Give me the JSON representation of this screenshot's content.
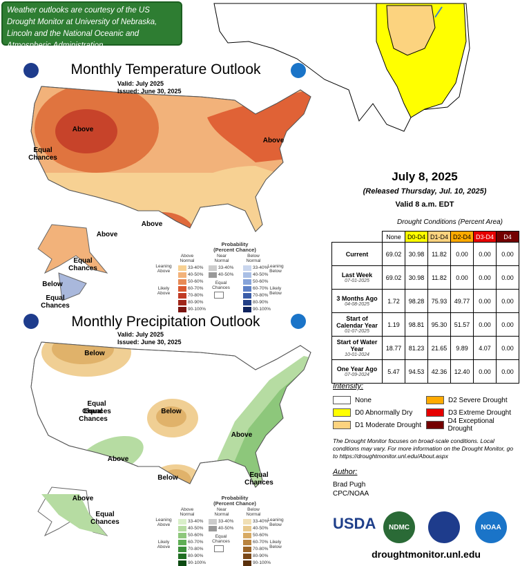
{
  "banner": "Weather outlooks are courtesy of the US Drought Monitor at University of Nebraska, Lincoln and the National Oceanic and Atmospheric Administration.",
  "temperature_outlook": {
    "title": "Monthly Temperature Outlook",
    "valid": "Valid:  July 2025",
    "issued": "Issued:  June 30, 2025",
    "map_labels": [
      "Above",
      "Equal Chances",
      "Above",
      "Above",
      "Above",
      "Equal Chances",
      "Below",
      "Equal Chances"
    ],
    "legend": {
      "title": "Probability",
      "subtitle": "(Percent Chance)",
      "above": "Above Normal",
      "near": "Near Normal",
      "below": "Below Normal",
      "leaning_left": "Leaning Above",
      "likely_left": "Likely Above",
      "equal": "Equal Chances",
      "leaning_right": "Leaning Below",
      "likely_right": "Likely Below",
      "ranges": [
        "33-40%",
        "40-50%",
        "50-60%",
        "60-70%",
        "70-80%",
        "80-90%",
        "90-100%"
      ],
      "near_ranges": [
        "33-40%",
        "40-50%"
      ]
    }
  },
  "precipitation_outlook": {
    "title": "Monthly Precipitation Outlook",
    "valid": "Valid:  July 2025",
    "issued": "Issued:  June 30, 2025",
    "map_labels": [
      "Below",
      "Equal Chances",
      "Equal Chances",
      "Below",
      "Above",
      "Above",
      "Below",
      "Equal Chances",
      "Above",
      "Equal Chances"
    ],
    "legend": {
      "title": "Probability",
      "subtitle": "(Percent Chance)",
      "above": "Above Normal",
      "near": "Near Normal",
      "below": "Below Normal",
      "leaning_left": "Leaning Above",
      "likely_left": "Likely Above",
      "equal": "Equal Chances",
      "leaning_right": "Leaning Below",
      "likely_right": "Likely Below",
      "ranges": [
        "33-40%",
        "40-50%",
        "50-60%",
        "60-70%",
        "70-80%",
        "80-90%",
        "90-100%"
      ],
      "near_ranges": [
        "33-40%",
        "40-50%"
      ]
    }
  },
  "date": "July 8, 2025",
  "released": "(Released Thursday, Jul. 10, 2025)",
  "valid": "Valid 8 a.m. EDT",
  "drought_table": {
    "caption": "Drought Conditions (Percent Area)",
    "columns": [
      "None",
      "D0-D4",
      "D1-D4",
      "D2-D4",
      "D3-D4",
      "D4"
    ],
    "rows": [
      {
        "label": "Current",
        "values": [
          "69.02",
          "30.98",
          "11.82",
          "0.00",
          "0.00",
          "0.00"
        ]
      },
      {
        "label": "Last Week",
        "date": "07-01-2025",
        "values": [
          "69.02",
          "30.98",
          "11.82",
          "0.00",
          "0.00",
          "0.00"
        ]
      },
      {
        "label": "3 Months Ago",
        "date": "04-08-2025",
        "values": [
          "1.72",
          "98.28",
          "75.93",
          "49.77",
          "0.00",
          "0.00"
        ]
      },
      {
        "label": "Start of Calendar Year",
        "date": "01-07-2025",
        "values": [
          "1.19",
          "98.81",
          "95.30",
          "51.57",
          "0.00",
          "0.00"
        ]
      },
      {
        "label": "Start of Water Year",
        "date": "10-01-2024",
        "values": [
          "18.77",
          "81.23",
          "21.65",
          "9.89",
          "4.07",
          "0.00"
        ]
      },
      {
        "label": "One Year Ago",
        "date": "07-09-2024",
        "values": [
          "5.47",
          "94.53",
          "42.36",
          "12.40",
          "0.00",
          "0.00"
        ]
      }
    ]
  },
  "intensity": {
    "heading": "Intensity:",
    "items": [
      {
        "label": "None",
        "color": "#ffffff"
      },
      {
        "label": "D0 Abnormally Dry",
        "color": "#ffff00"
      },
      {
        "label": "D1 Moderate Drought",
        "color": "#fcd37f"
      },
      {
        "label": "D2 Severe Drought",
        "color": "#ffaa00"
      },
      {
        "label": "D3 Extreme Drought",
        "color": "#e60000"
      },
      {
        "label": "D4 Exceptional Drought",
        "color": "#730000"
      }
    ]
  },
  "note": "The Drought Monitor focuses on broad-scale conditions. Local conditions may vary. For more information on the Drought Monitor, go to https://droughtmonitor.unl.edu/About.aspx",
  "author": {
    "heading": "Author:",
    "name": "Brad Pugh",
    "org": "CPC/NOAA"
  },
  "logos": {
    "usda": "USDA",
    "ndmc": "NDMC",
    "noaa": "NOAA"
  },
  "url": "droughtmonitor.unl.edu"
}
